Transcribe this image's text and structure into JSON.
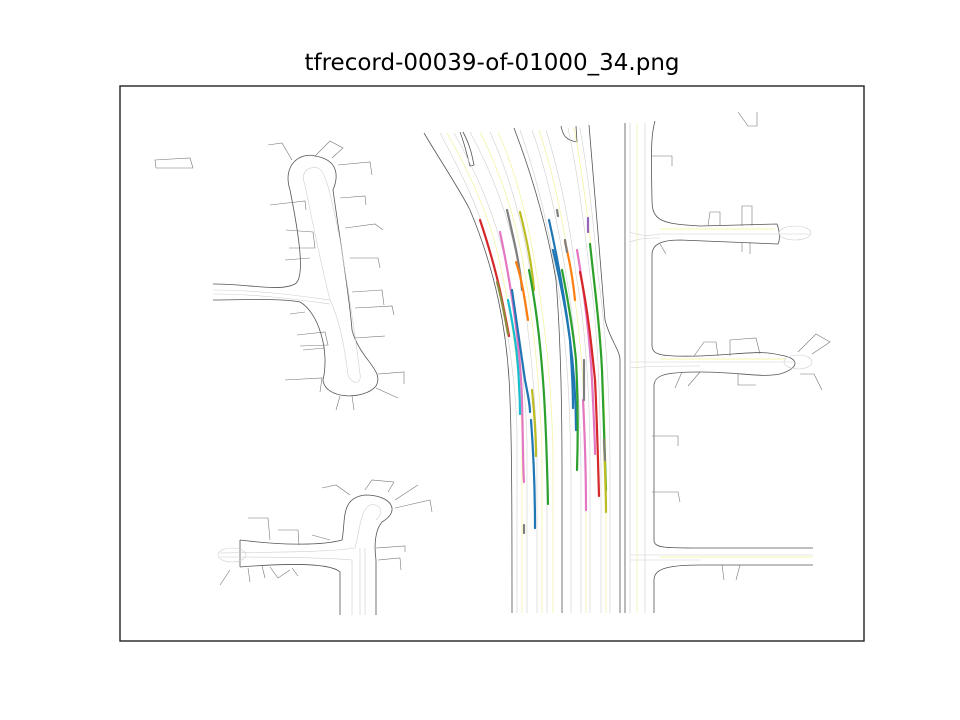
{
  "figure": {
    "title": "tfrecord-00039-of-01000_34.png"
  },
  "colors": {
    "road_edge": "#555555",
    "lane_center": "#c9c9c9",
    "lane_yellow": "#f2f29a",
    "frame": "#000000",
    "trajectories": [
      "#d62728",
      "#1f77b4",
      "#2ca02c",
      "#ff7f0e",
      "#9467bd",
      "#e377c2",
      "#7f7f7f",
      "#bcbd22",
      "#17becf"
    ]
  },
  "legend": "none",
  "axes_visible": false
}
